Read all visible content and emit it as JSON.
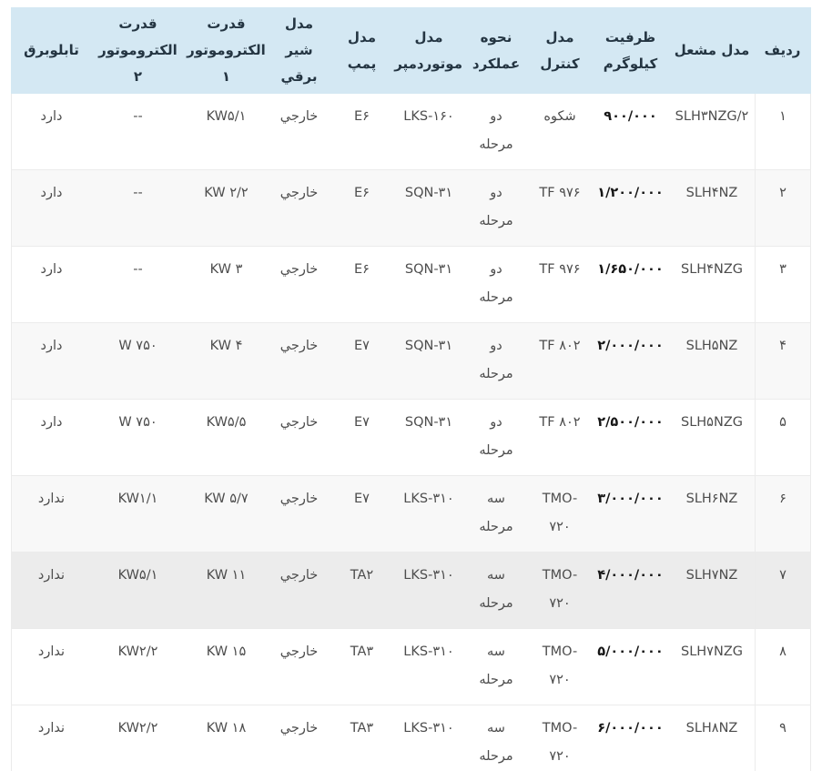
{
  "table": {
    "title_hint": "جدول مشخصات مشعل",
    "columns": [
      {
        "key": "row_number",
        "label": "ردیف"
      },
      {
        "key": "burner_model",
        "label": "مدل مشعل"
      },
      {
        "key": "capacity_kg",
        "label": "ظرفیت\nکیلوگرم"
      },
      {
        "key": "control_model",
        "label": "مدل\nکنترل"
      },
      {
        "key": "operation_mode",
        "label": "نحوه\nعملکرد"
      },
      {
        "key": "damper_motor",
        "label": "مدل\nموتوردمپر"
      },
      {
        "key": "pump_model",
        "label": "مدل\nپمپ"
      },
      {
        "key": "solenoid_valve",
        "label": "مدل شیر\nبرقي"
      },
      {
        "key": "electromotor1",
        "label": "قدرت\nالکتروموتور ۱"
      },
      {
        "key": "electromotor2",
        "label": "قدرت\nالکتروموتور ۲"
      },
      {
        "key": "electric_panel",
        "label": "تابلوبرق"
      }
    ],
    "rows": [
      {
        "cells": [
          "۱",
          "SLH۳NZG/۲",
          "۹۰۰/۰۰۰",
          "شکوه",
          "دو\nمرحله",
          "LKS-۱۶۰",
          "E۶",
          "خارجي",
          "KW۵/۱",
          "--",
          "دارد"
        ]
      },
      {
        "cells": [
          "۲",
          "SLH۴NZ",
          "۱/۲۰۰/۰۰۰",
          "TF ۹۷۶",
          "دو\nمرحله",
          "SQN-۳۱",
          "E۶",
          "خارجي",
          "KW ۲/۲",
          "--",
          "دارد"
        ]
      },
      {
        "cells": [
          "۳",
          "SLH۴NZG",
          "۱/۶۵۰/۰۰۰",
          "TF ۹۷۶",
          "دو\nمرحله",
          "SQN-۳۱",
          "E۶",
          "خارجي",
          "KW ۳",
          "--",
          "دارد"
        ]
      },
      {
        "cells": [
          "۴",
          "SLH۵NZ",
          "۲/۰۰۰/۰۰۰",
          "TF ۸۰۲",
          "دو\nمرحله",
          "SQN-۳۱",
          "E۷",
          "خارجي",
          "KW ۴",
          "W ۷۵۰",
          "دارد"
        ]
      },
      {
        "cells": [
          "۵",
          "SLH۵NZG",
          "۲/۵۰۰/۰۰۰",
          "TF ۸۰۲",
          "دو\nمرحله",
          "SQN-۳۱",
          "E۷",
          "خارجي",
          "KW۵/۵",
          "W ۷۵۰",
          "دارد"
        ]
      },
      {
        "cells": [
          "۶",
          "SLH۶NZ",
          "۳/۰۰۰/۰۰۰",
          "TMO-\n۷۲۰",
          "سه\nمرحله",
          "LKS-۳۱۰",
          "E۷",
          "خارجي",
          "KW ۵/۷",
          "KW۱/۱",
          "ندارد"
        ]
      },
      {
        "cells": [
          "۷",
          "SLH۷NZ",
          "۴/۰۰۰/۰۰۰",
          "TMO-\n۷۲۰",
          "سه\nمرحله",
          "LKS-۳۱۰",
          "TA۲",
          "خارجي",
          "KW ۱۱",
          "KW۵/۱",
          "ندارد"
        ]
      },
      {
        "cells": [
          "۸",
          "SLH۷NZG",
          "۵/۰۰۰/۰۰۰",
          "TMO-\n۷۲۰",
          "سه\nمرحله",
          "LKS-۳۱۰",
          "TA۳",
          "خارجي",
          "KW ۱۵",
          "KW۲/۲",
          "ندارد"
        ]
      },
      {
        "cells": [
          "۹",
          "SLH۸NZ",
          "۶/۰۰۰/۰۰۰",
          "TMO-\n۷۲۰",
          "سه\nمرحله",
          "LKS-۳۱۰",
          "TA۳",
          "خارجي",
          "KW ۱۸",
          "KW۲/۲",
          "ندارد"
        ]
      }
    ],
    "highlighted_row_number": "۷"
  },
  "colors": {
    "header_background": "#d4e8f3",
    "header_text": "#243542",
    "row_stripe": "#f8f8f8",
    "row_highlight": "#ececec",
    "border": "#ebebeb",
    "body_text": "#4d4d4d",
    "capacity_text": "#161616"
  }
}
